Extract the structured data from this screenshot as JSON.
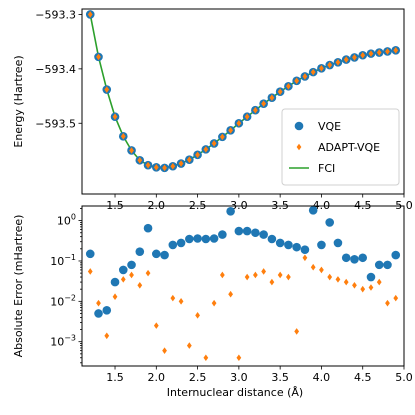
{
  "chart_data": [
    {
      "type": "line",
      "ylabel": "Energy (Hartree)",
      "xlabel": "",
      "xlim": [
        1.1,
        5.0
      ],
      "ylim": [
        -593.63,
        -593.29
      ],
      "xticks": [
        1.5,
        2.0,
        2.5,
        3.0,
        3.5,
        4.0,
        4.5,
        5.0
      ],
      "xtick_labels": [
        "1.5",
        "2.0",
        "2.5",
        "3.0",
        "3.5",
        "4.0",
        "4.5",
        "5.0"
      ],
      "yticks": [
        -593.3,
        -593.4,
        -593.5
      ],
      "ytick_labels": [
        "−593.3",
        "−593.4",
        "−593.5"
      ],
      "legend_position": "lower-right",
      "x": [
        1.2,
        1.3,
        1.4,
        1.5,
        1.6,
        1.7,
        1.8,
        1.9,
        2.0,
        2.1,
        2.2,
        2.3,
        2.4,
        2.5,
        2.6,
        2.7,
        2.8,
        2.9,
        3.0,
        3.1,
        3.2,
        3.3,
        3.4,
        3.5,
        3.6,
        3.7,
        3.8,
        3.9,
        4.0,
        4.1,
        4.2,
        4.3,
        4.4,
        4.5,
        4.6,
        4.7,
        4.8,
        4.9
      ],
      "series": [
        {
          "name": "VQE",
          "marker": "circle",
          "color": "#1f77b4",
          "values": [
            -593.3,
            -593.378,
            -593.438,
            -593.488,
            -593.524,
            -593.55,
            -593.568,
            -593.577,
            -593.581,
            -593.582,
            -593.579,
            -593.574,
            -593.567,
            -593.558,
            -593.548,
            -593.537,
            -593.525,
            -593.513,
            -593.5,
            -593.488,
            -593.476,
            -593.464,
            -593.453,
            -593.442,
            -593.432,
            -593.422,
            -593.414,
            -593.406,
            -593.399,
            -593.393,
            -593.388,
            -593.383,
            -593.379,
            -593.375,
            -593.372,
            -593.37,
            -593.368,
            -593.366
          ]
        },
        {
          "name": "ADAPT-VQE",
          "marker": "diamond",
          "color": "#ff7f0e",
          "values": [
            -593.3,
            -593.378,
            -593.438,
            -593.488,
            -593.524,
            -593.55,
            -593.568,
            -593.577,
            -593.581,
            -593.582,
            -593.579,
            -593.574,
            -593.567,
            -593.558,
            -593.548,
            -593.537,
            -593.525,
            -593.513,
            -593.5,
            -593.488,
            -593.476,
            -593.464,
            -593.453,
            -593.442,
            -593.432,
            -593.422,
            -593.414,
            -593.406,
            -593.399,
            -593.393,
            -593.388,
            -593.383,
            -593.379,
            -593.375,
            -593.372,
            -593.37,
            -593.368,
            -593.366
          ]
        },
        {
          "name": "FCI",
          "marker": "line",
          "color": "#2ca02c",
          "values": [
            -593.3,
            -593.378,
            -593.438,
            -593.488,
            -593.524,
            -593.55,
            -593.568,
            -593.577,
            -593.581,
            -593.582,
            -593.579,
            -593.574,
            -593.567,
            -593.558,
            -593.548,
            -593.537,
            -593.525,
            -593.513,
            -593.5,
            -593.488,
            -593.476,
            -593.464,
            -593.453,
            -593.442,
            -593.432,
            -593.422,
            -593.414,
            -593.406,
            -593.399,
            -593.393,
            -593.388,
            -593.383,
            -593.379,
            -593.375,
            -593.372,
            -593.37,
            -593.368,
            -593.366
          ]
        }
      ]
    },
    {
      "type": "scatter",
      "ylabel": "Absolute Error (mHartree)",
      "xlabel": "Internuclear distance (Å)",
      "xlim": [
        1.1,
        5.0
      ],
      "ylim": [
        0.00025,
        2.3
      ],
      "yscale": "log",
      "xticks": [
        1.5,
        2.0,
        2.5,
        3.0,
        3.5,
        4.0,
        4.5,
        5.0
      ],
      "xtick_labels": [
        "1.5",
        "2.0",
        "2.5",
        "3.0",
        "3.5",
        "4.0",
        "4.5",
        "5.0"
      ],
      "yticks": [
        1,
        0.1,
        0.01,
        0.001
      ],
      "ytick_labels": [
        {
          "base": "10",
          "exp": "0"
        },
        {
          "base": "10",
          "exp": "−1"
        },
        {
          "base": "10",
          "exp": "−2"
        },
        {
          "base": "10",
          "exp": "−3"
        }
      ],
      "x": [
        1.2,
        1.3,
        1.4,
        1.5,
        1.6,
        1.7,
        1.8,
        1.9,
        2.0,
        2.1,
        2.2,
        2.3,
        2.4,
        2.5,
        2.6,
        2.7,
        2.8,
        2.9,
        3.0,
        3.1,
        3.2,
        3.3,
        3.4,
        3.5,
        3.6,
        3.7,
        3.8,
        3.9,
        4.0,
        4.1,
        4.2,
        4.3,
        4.4,
        4.5,
        4.6,
        4.7,
        4.8,
        4.9
      ],
      "series": [
        {
          "name": "VQE",
          "marker": "circle",
          "color": "#1f77b4",
          "values": [
            0.15,
            0.005,
            0.006,
            0.03,
            0.06,
            0.08,
            0.17,
            0.65,
            0.15,
            0.14,
            0.25,
            0.28,
            0.35,
            0.36,
            0.35,
            0.36,
            0.45,
            1.7,
            0.55,
            0.55,
            0.5,
            0.45,
            0.35,
            0.28,
            0.25,
            0.22,
            0.19,
            1.8,
            0.25,
            0.9,
            0.28,
            0.12,
            0.11,
            0.12,
            0.04,
            0.08,
            0.08,
            0.14
          ]
        },
        {
          "name": "ADAPT-VQE",
          "marker": "diamond",
          "color": "#ff7f0e",
          "values": [
            0.055,
            0.009,
            0.0014,
            0.013,
            0.035,
            0.045,
            0.025,
            0.05,
            0.0025,
            0.0006,
            0.012,
            0.01,
            0.0008,
            0.0045,
            0.0004,
            0.009,
            0.045,
            0.015,
            0.0004,
            0.04,
            0.045,
            0.055,
            0.03,
            0.045,
            0.04,
            0.0018,
            0.12,
            0.07,
            0.06,
            0.04,
            0.035,
            0.03,
            0.025,
            0.02,
            0.022,
            0.03,
            0.009,
            0.012
          ]
        }
      ]
    }
  ]
}
